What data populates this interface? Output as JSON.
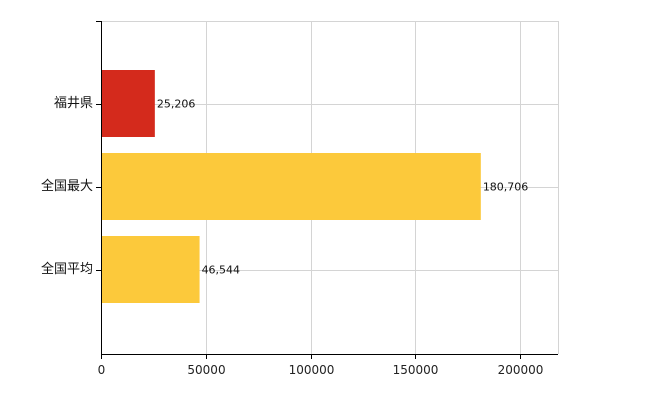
{
  "chart_data": {
    "type": "bar",
    "orientation": "horizontal",
    "title": "",
    "xlabel": "",
    "ylabel": "",
    "categories": [
      "福井県",
      "全国最大",
      "全国平均"
    ],
    "values": [
      25206,
      180706,
      46544
    ],
    "value_labels": [
      "25,206",
      "180,706",
      "46,544"
    ],
    "bar_colors": [
      "#d42a1c",
      "#fcc93b",
      "#fcc93b"
    ],
    "xlim": [
      0,
      218000
    ],
    "x_ticks": [
      0,
      50000,
      100000,
      150000,
      200000
    ],
    "x_tick_labels": [
      "0",
      "50000",
      "100000",
      "150000",
      "200000"
    ],
    "grid": true,
    "legend": "none"
  },
  "colors": {
    "grid": "#d4d4d4",
    "axis": "#000000"
  }
}
